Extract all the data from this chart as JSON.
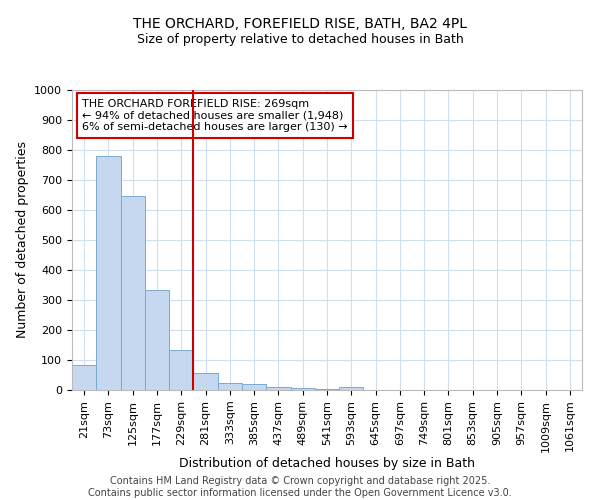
{
  "title1": "THE ORCHARD, FOREFIELD RISE, BATH, BA2 4PL",
  "title2": "Size of property relative to detached houses in Bath",
  "xlabel": "Distribution of detached houses by size in Bath",
  "ylabel": "Number of detached properties",
  "bar_color": "#c5d8f0",
  "bar_edge_color": "#7aaad0",
  "vline_color": "#cc0000",
  "vline_index": 5,
  "annotation_text": "THE ORCHARD FOREFIELD RISE: 269sqm\n← 94% of detached houses are smaller (1,948)\n6% of semi-detached houses are larger (130) →",
  "categories": [
    "21sqm",
    "73sqm",
    "125sqm",
    "177sqm",
    "229sqm",
    "281sqm",
    "333sqm",
    "385sqm",
    "437sqm",
    "489sqm",
    "541sqm",
    "593sqm",
    "645sqm",
    "697sqm",
    "749sqm",
    "801sqm",
    "853sqm",
    "905sqm",
    "957sqm",
    "1009sqm",
    "1061sqm"
  ],
  "values": [
    83,
    780,
    648,
    335,
    133,
    58,
    25,
    20,
    10,
    8,
    5,
    10,
    0,
    0,
    0,
    0,
    0,
    0,
    0,
    0,
    0
  ],
  "ylim": [
    0,
    1000
  ],
  "yticks": [
    0,
    100,
    200,
    300,
    400,
    500,
    600,
    700,
    800,
    900,
    1000
  ],
  "background_color": "#ffffff",
  "grid_color": "#d0dff0",
  "footer1": "Contains HM Land Registry data © Crown copyright and database right 2025.",
  "footer2": "Contains public sector information licensed under the Open Government Licence v3.0.",
  "title_fontsize": 10,
  "subtitle_fontsize": 9,
  "axis_label_fontsize": 9,
  "tick_fontsize": 8,
  "annotation_fontsize": 8,
  "footer_fontsize": 7
}
